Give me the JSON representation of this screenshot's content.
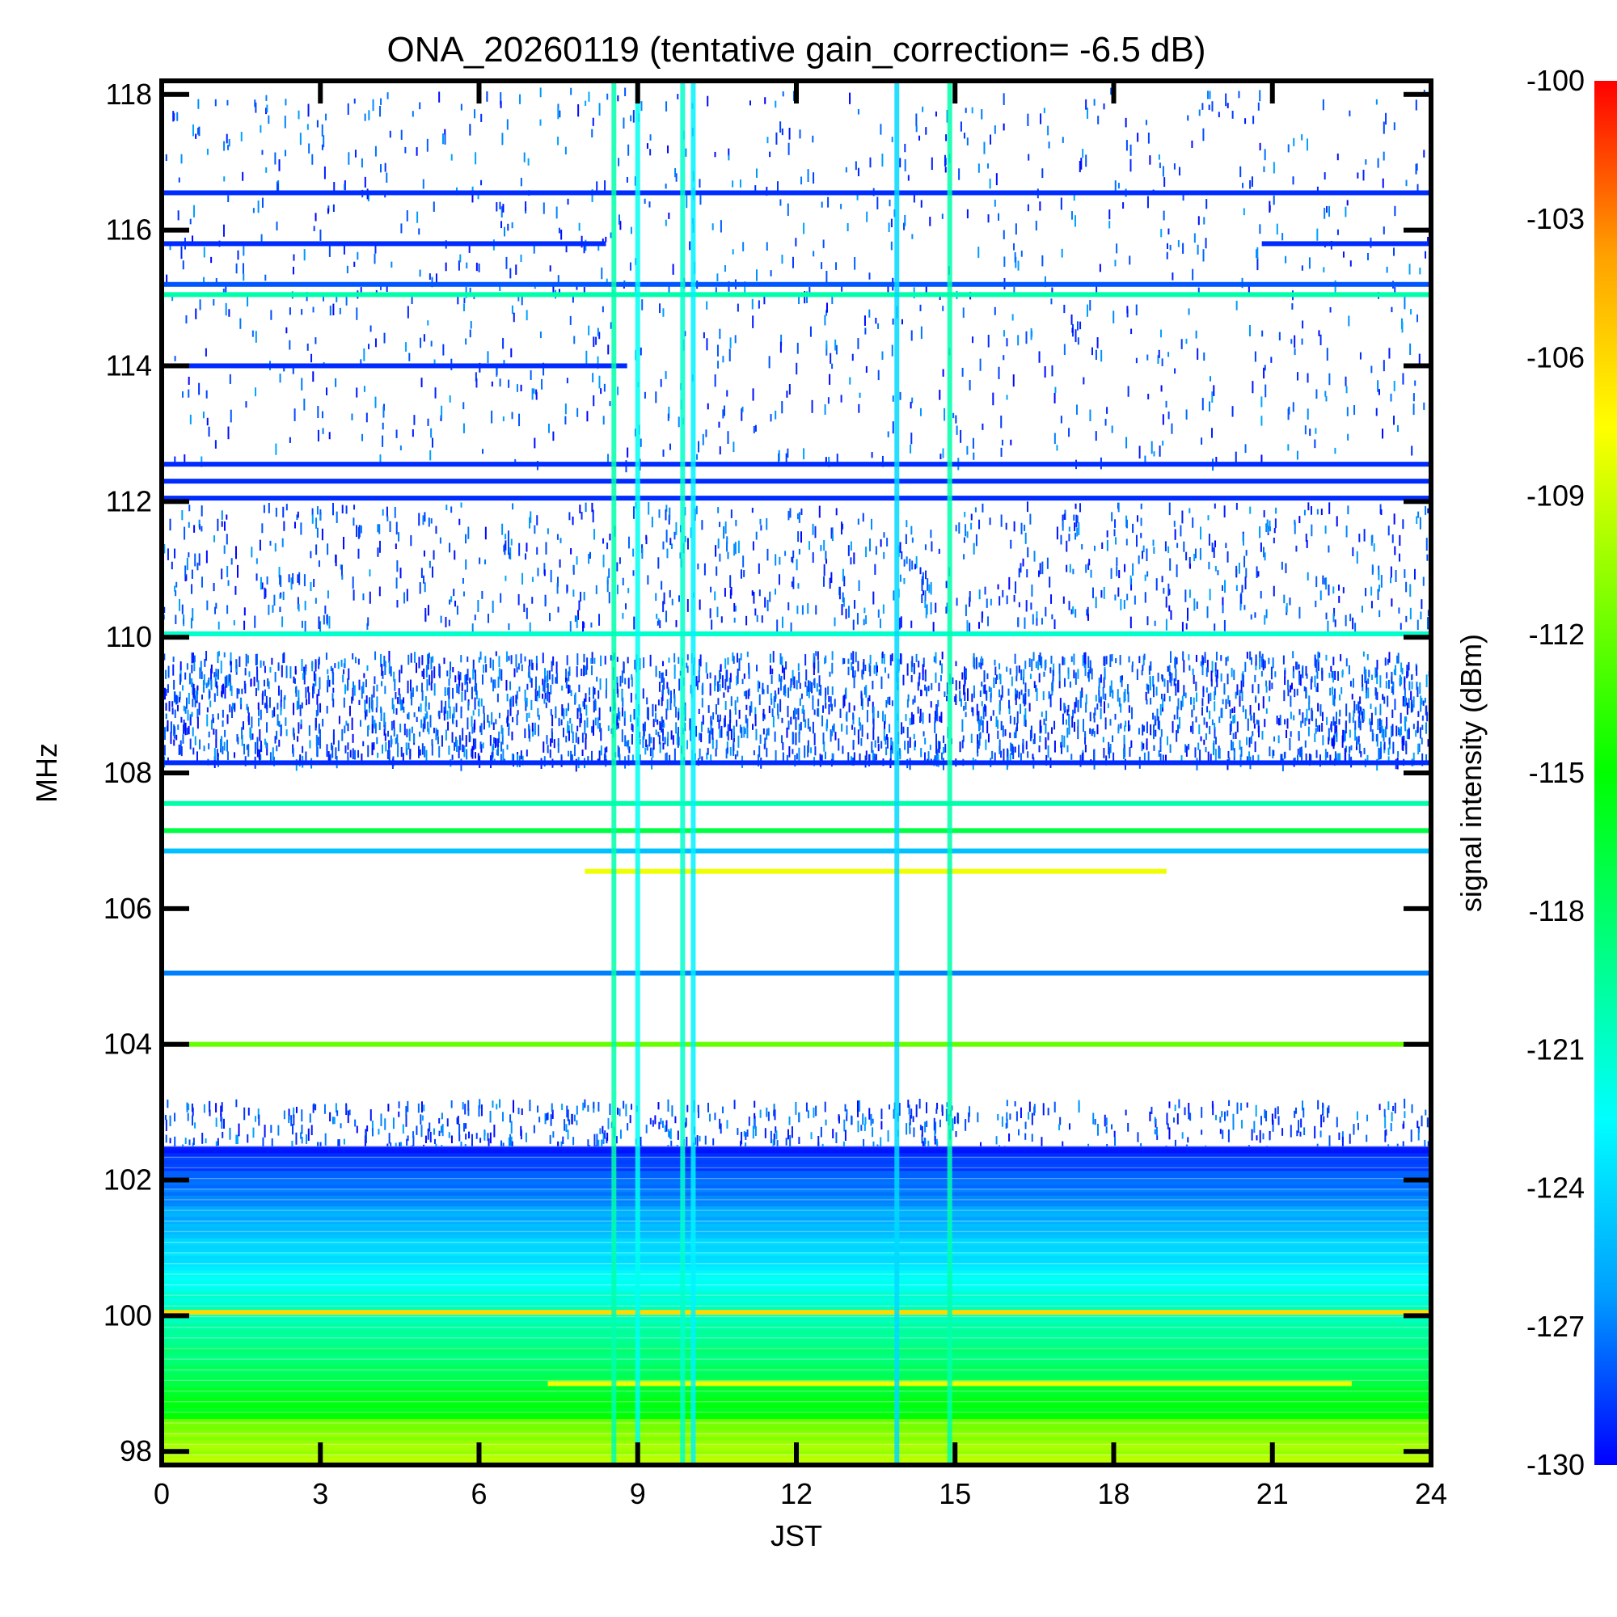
{
  "chart_data": {
    "type": "heatmap",
    "title": "ONA_20260119 (tentative gain_correction= -6.5 dB)",
    "xlabel": "JST",
    "ylabel": "MHz",
    "xlim": [
      0,
      24
    ],
    "ylim": [
      97.8,
      118.2
    ],
    "x_ticks": [
      "0",
      "3",
      "6",
      "9",
      "12",
      "15",
      "18",
      "21",
      "24"
    ],
    "x_tick_values": [
      0,
      3,
      6,
      9,
      12,
      15,
      18,
      21,
      24
    ],
    "y_ticks": [
      "98",
      "100",
      "102",
      "104",
      "106",
      "108",
      "110",
      "112",
      "114",
      "116",
      "118"
    ],
    "y_tick_values": [
      98,
      100,
      102,
      104,
      106,
      108,
      110,
      112,
      114,
      116,
      118
    ],
    "colorbar": {
      "label": "signal intensity (dBm)",
      "range": [
        -130,
        -100
      ],
      "ticks": [
        "-100",
        "-103",
        "-106",
        "-109",
        "-112",
        "-115",
        "-118",
        "-121",
        "-124",
        "-127",
        "-130"
      ],
      "tick_values": [
        -100,
        -103,
        -106,
        -109,
        -112,
        -115,
        -118,
        -121,
        -124,
        -127,
        -130
      ],
      "colormap": [
        "#0000ff",
        "#00a0ff",
        "#00ffff",
        "#00ff80",
        "#00ff00",
        "#80ff00",
        "#ffff00",
        "#ffa000",
        "#ff0000"
      ]
    },
    "horizontal_bands": [
      {
        "freq_mhz": 116.55,
        "dbm": -129,
        "t_start": 0,
        "t_end": 24
      },
      {
        "freq_mhz": 115.8,
        "dbm": -129,
        "t_start": 0,
        "t_end": 8.4
      },
      {
        "freq_mhz": 115.8,
        "dbm": -129,
        "t_start": 20.8,
        "t_end": 24
      },
      {
        "freq_mhz": 115.2,
        "dbm": -128,
        "t_start": 0,
        "t_end": 24
      },
      {
        "freq_mhz": 115.05,
        "dbm": -120,
        "t_start": 0,
        "t_end": 24
      },
      {
        "freq_mhz": 114.0,
        "dbm": -129,
        "t_start": 0,
        "t_end": 8.8
      },
      {
        "freq_mhz": 112.55,
        "dbm": -129,
        "t_start": 0,
        "t_end": 24
      },
      {
        "freq_mhz": 112.3,
        "dbm": -129,
        "t_start": 0,
        "t_end": 24
      },
      {
        "freq_mhz": 112.05,
        "dbm": -129,
        "t_start": 0,
        "t_end": 24
      },
      {
        "freq_mhz": 110.05,
        "dbm": -121,
        "t_start": 0,
        "t_end": 24
      },
      {
        "freq_mhz": 108.15,
        "dbm": -129,
        "t_start": 0,
        "t_end": 24
      },
      {
        "freq_mhz": 107.55,
        "dbm": -120,
        "t_start": 0,
        "t_end": 24
      },
      {
        "freq_mhz": 107.15,
        "dbm": -117,
        "t_start": 0,
        "t_end": 24
      },
      {
        "freq_mhz": 106.85,
        "dbm": -125,
        "t_start": 0,
        "t_end": 24
      },
      {
        "freq_mhz": 106.55,
        "dbm": -108,
        "t_start": 8,
        "t_end": 19
      },
      {
        "freq_mhz": 105.05,
        "dbm": -127,
        "t_start": 0,
        "t_end": 24
      },
      {
        "freq_mhz": 104.0,
        "dbm": -112,
        "t_start": 0,
        "t_end": 24
      },
      {
        "freq_mhz": 100.05,
        "dbm": -106,
        "t_start": 0,
        "t_end": 24
      },
      {
        "freq_mhz": 99.0,
        "dbm": -108,
        "t_start": 7.3,
        "t_end": 22.5
      }
    ],
    "vertical_bands": [
      {
        "t_jst": 8.55,
        "dbm": -120
      },
      {
        "t_jst": 9.0,
        "dbm": -122
      },
      {
        "t_jst": 9.85,
        "dbm": -121
      },
      {
        "t_jst": 10.05,
        "dbm": -123
      },
      {
        "t_jst": 13.9,
        "dbm": -124
      },
      {
        "t_jst": 14.9,
        "dbm": -120
      }
    ]
  }
}
